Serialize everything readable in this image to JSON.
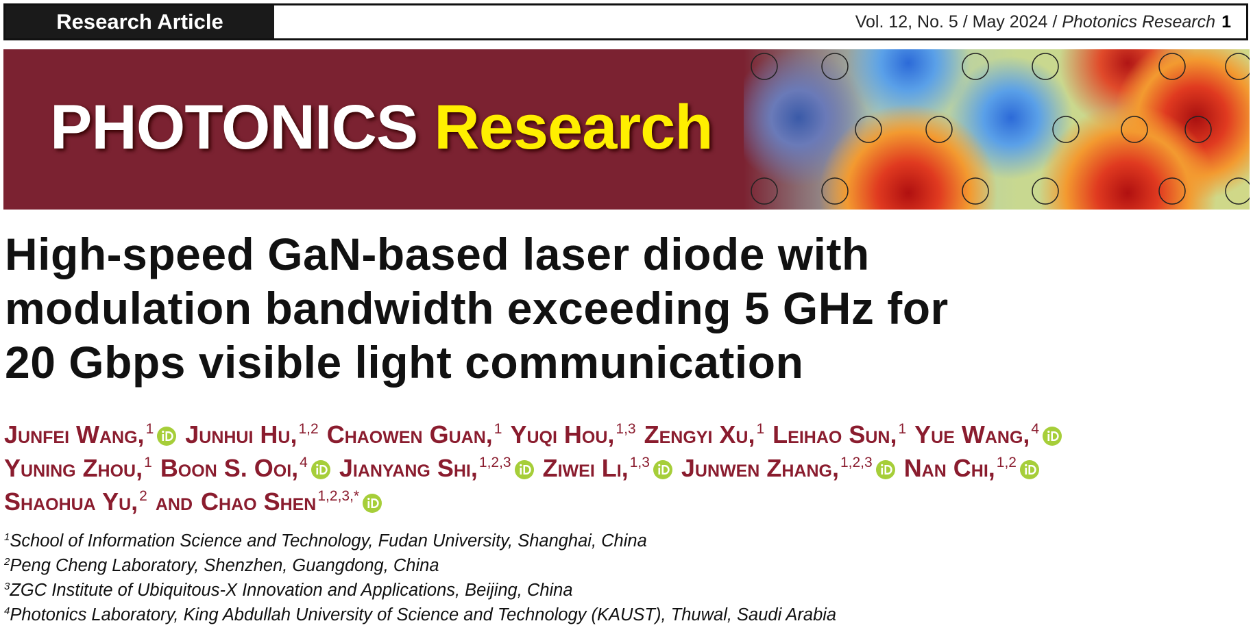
{
  "header": {
    "label": "Research Article",
    "issue": "Vol. 12, No. 5 / May 2024 /",
    "journal": "Photonics Research",
    "page": "1"
  },
  "banner": {
    "brand": "PHOTONICS",
    "brand_accent": "Research"
  },
  "title": [
    "High-speed GaN-based laser diode with",
    "modulation bandwidth exceeding 5 GHz for",
    "20 Gbps visible light communication"
  ],
  "authors": [
    [
      {
        "name": "Junfei Wang,",
        "sup": "1",
        "orcid": true
      },
      {
        "name": "Junhui Hu,",
        "sup": "1,2",
        "orcid": false
      },
      {
        "name": "Chaowen Guan,",
        "sup": "1",
        "orcid": false
      },
      {
        "name": "Yuqi Hou,",
        "sup": "1,3",
        "orcid": false
      },
      {
        "name": "Zengyi Xu,",
        "sup": "1",
        "orcid": false
      },
      {
        "name": "Leihao Sun,",
        "sup": "1",
        "orcid": false
      },
      {
        "name": "Yue Wang,",
        "sup": "4",
        "orcid": true
      }
    ],
    [
      {
        "name": "Yuning Zhou,",
        "sup": "1",
        "orcid": false
      },
      {
        "name": "Boon S. Ooi,",
        "sup": "4",
        "orcid": true
      },
      {
        "name": "Jianyang Shi,",
        "sup": "1,2,3",
        "orcid": true
      },
      {
        "name": "Ziwei Li,",
        "sup": "1,3",
        "orcid": true
      },
      {
        "name": "Junwen Zhang,",
        "sup": "1,2,3",
        "orcid": true
      },
      {
        "name": "Nan Chi,",
        "sup": "1,2",
        "orcid": true
      }
    ],
    [
      {
        "name": "Shaohua Yu,",
        "sup": "2",
        "orcid": false
      },
      {
        "name": "and",
        "orcid": false
      },
      {
        "name": "Chao Shen",
        "sup": "1,2,3,*",
        "orcid": true
      }
    ]
  ],
  "affiliations": [
    {
      "sup": "1",
      "text": "School of Information Science and Technology, Fudan University, Shanghai, China"
    },
    {
      "sup": "2",
      "text": "Peng Cheng Laboratory, Shenzhen, Guangdong, China"
    },
    {
      "sup": "3",
      "text": "ZGC Institute of Ubiquitous-X Innovation and Applications, Beijing, China"
    },
    {
      "sup": "4",
      "text": "Photonics Laboratory, King Abdullah University of Science and Technology (KAUST), Thuwal, Saudi Arabia"
    }
  ]
}
